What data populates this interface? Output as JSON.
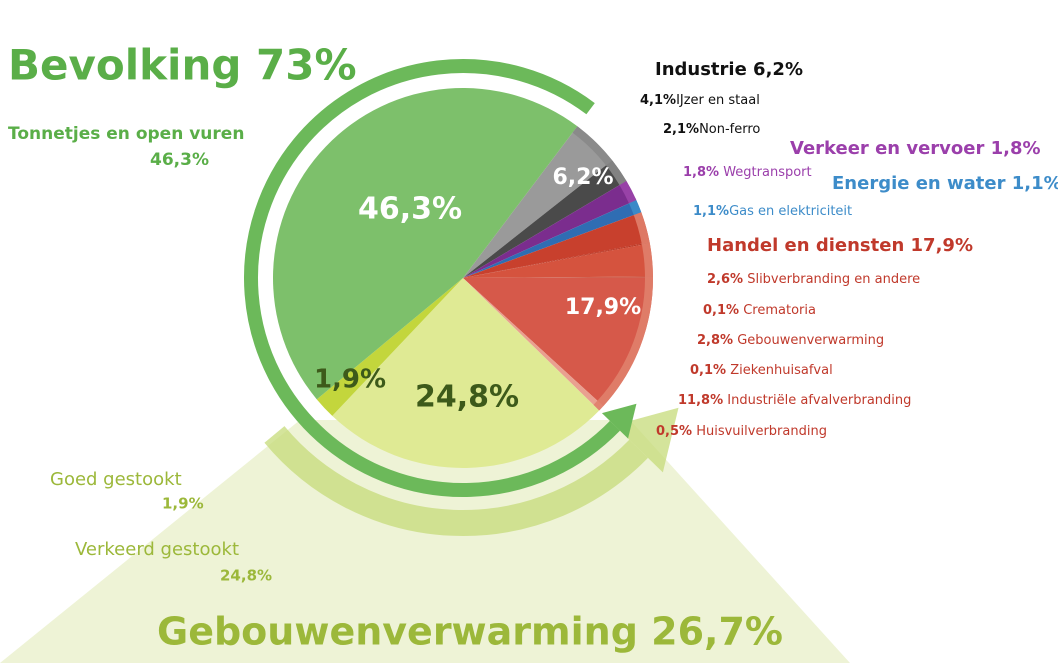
{
  "chart_data": {
    "type": "pie",
    "slices": [
      {
        "name": "IJzer en staal",
        "value": 4.1,
        "value_label": "4,1%",
        "color": "#9a9a9a"
      },
      {
        "name": "Non-ferro",
        "value": 2.1,
        "value_label": "2,1%",
        "color": "#4a4a4a"
      },
      {
        "name": "Wegtransport",
        "value": 1.8,
        "value_label": "1,8%",
        "color": "#7b2d8e"
      },
      {
        "name": "Gas en elektriciteit",
        "value": 1.1,
        "value_label": "1,1%",
        "color": "#2f6db3"
      },
      {
        "name": "Slibverbranding en andere",
        "value": 2.6,
        "value_label": "2,6%",
        "color": "#c8402d"
      },
      {
        "name": "Crematoria",
        "value": 0.1,
        "value_label": "0,1%",
        "color": "#b8321f"
      },
      {
        "name": "Gebouwenverwarming",
        "value": 2.8,
        "value_label": "2,8%",
        "color": "#d5533e"
      },
      {
        "name": "Ziekenhuisafval",
        "value": 0.1,
        "value_label": "0,1%",
        "color": "#c64a36"
      },
      {
        "name": "Industriële afvalverbranding",
        "value": 11.8,
        "value_label": "11,8%",
        "color": "#d6594a"
      },
      {
        "name": "Huisvuilverbranding",
        "value": 0.5,
        "value_label": "0,5%",
        "color": "#e9a090"
      },
      {
        "name": "Verkeerd gestookt",
        "value": 24.8,
        "value_label": "24,8%",
        "color": "#dfea94"
      },
      {
        "name": "Goed gestookt",
        "value": 1.9,
        "value_label": "1,9%",
        "color": "#c3d63c"
      },
      {
        "name": "Tonnetjes en open vuren",
        "value": 46.3,
        "value_label": "46,3%",
        "color": "#7dc06b"
      }
    ],
    "groups": [
      {
        "label": "Industrie 6,2%",
        "pie_label": "6,2%",
        "value": 6.2,
        "color": "#888888"
      },
      {
        "label": "Verkeer en vervoer 1,8%",
        "value": 1.8,
        "color": "#9b45aa"
      },
      {
        "label": "Energie en water 1,1%",
        "value": 1.1,
        "color": "#3d8cc9"
      },
      {
        "label": "Handel en diensten 17,9%",
        "pie_label": "17,9%",
        "value": 17.9,
        "color": "#e0806c"
      },
      {
        "label": "Gebouwenverwarming 26,7%",
        "value": 26.7,
        "color": "#c6db7a"
      },
      {
        "label": "Bevolking 73%",
        "value": 73,
        "color": "#6cb95a"
      }
    ]
  }
}
